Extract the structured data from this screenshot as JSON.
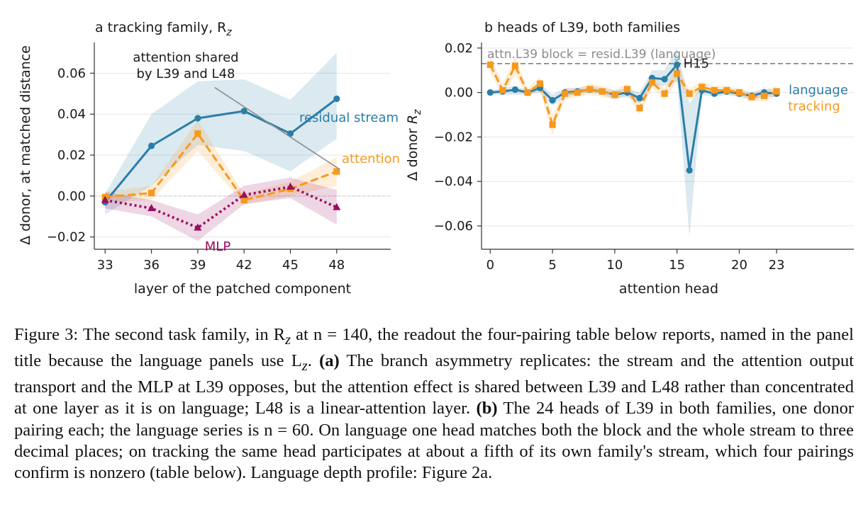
{
  "figure": {
    "panel_a_title": "a  tracking family, R",
    "panel_a_title_sub": "z",
    "panel_b_title": "b  heads of L39, both families",
    "caption": {
      "lead": "Figure 3: The second task family, in R",
      "lead_sub": "z",
      "p1": " at n = 140, the readout the four-pairing table below reports, named in the panel title because the language panels use L",
      "p1_sub": "z",
      "p2": ". ",
      "a_label": "(a)",
      "p3": " The branch asymmetry replicates: the stream and the attention output transport and the MLP at L39 opposes, but the attention effect is shared between L39 and L48 rather than concentrated at one layer as it is on language; L48 is a linear-attention layer. ",
      "b_label": "(b)",
      "p4": " The 24 heads of L39 in both families, one donor pairing each; the language series is n = 60. On language one head matches both the block and the whole stream to three decimal places; on tracking the same head participates at about a fifth of its own family's stream, which four pairings confirm is nonzero (table below). Language depth profile: Figure 2a."
    }
  },
  "chart_data": [
    {
      "type": "line",
      "panel": "a",
      "title": "a  tracking family, Rz",
      "xlabel": "layer of the patched component",
      "ylabel": "Δ donor, at matched distance",
      "xlim": [
        32.3,
        51.5
      ],
      "ylim": [
        -0.026,
        0.075
      ],
      "xticks": [
        33,
        36,
        39,
        42,
        45,
        48
      ],
      "yticks": [
        -0.02,
        0.0,
        0.02,
        0.04,
        0.06
      ],
      "ytick_labels": [
        "−0.02",
        "0.00",
        "0.02",
        "0.04",
        "0.06"
      ],
      "x": [
        33,
        36,
        39,
        42,
        45,
        48
      ],
      "grid": "horizontal",
      "zero_line": true,
      "series": [
        {
          "name": "residual stream",
          "color": "#2a7ea8",
          "style": "solid",
          "marker": "circle",
          "values": [
            -0.003,
            0.0245,
            0.038,
            0.0415,
            0.0305,
            0.0475
          ],
          "band_low": [
            -0.009,
            0.005,
            0.025,
            0.022,
            0.012,
            0.028
          ],
          "band_high": [
            0.001,
            0.04,
            0.056,
            0.057,
            0.047,
            0.07
          ]
        },
        {
          "name": "attention",
          "color": "#f7991e",
          "style": "dashed",
          "marker": "square",
          "values": [
            -0.0005,
            0.0015,
            0.0305,
            -0.002,
            0.0035,
            0.012
          ],
          "band_low": [
            -0.003,
            -0.002,
            0.022,
            -0.004,
            0.0,
            0.005
          ],
          "band_high": [
            0.002,
            0.005,
            0.037,
            0.001,
            0.007,
            0.019
          ]
        },
        {
          "name": "MLP",
          "color": "#9b0d5f",
          "style": "dotted",
          "marker": "triangle",
          "values": [
            -0.002,
            -0.006,
            -0.0155,
            0.0005,
            0.0045,
            -0.0055
          ],
          "band_low": [
            -0.006,
            -0.01,
            -0.022,
            -0.004,
            -0.001,
            -0.014
          ],
          "band_high": [
            0.002,
            -0.002,
            -0.009,
            0.005,
            0.009,
            0.003
          ]
        }
      ],
      "annotations": [
        {
          "text": "attention shared",
          "text2": "by L39 and L48",
          "arrow_to": [
            48.2,
            0.013
          ],
          "arrow_from": [
            40.1,
            0.053
          ]
        }
      ]
    },
    {
      "type": "line",
      "panel": "b",
      "title": "b  heads of L39, both families",
      "xlabel": "attention head",
      "ylabel": "Δ donor Rz",
      "xlim": [
        -0.7,
        29.2
      ],
      "ylim": [
        -0.0705,
        0.0225
      ],
      "xticks": [
        0,
        5,
        10,
        15,
        20,
        23
      ],
      "yticks": [
        -0.06,
        -0.04,
        -0.02,
        0.0,
        0.02
      ],
      "ytick_labels": [
        "−0.06",
        "−0.04",
        "−0.02",
        "0.00",
        "0.02"
      ],
      "x": [
        0,
        1,
        2,
        3,
        4,
        5,
        6,
        7,
        8,
        9,
        10,
        11,
        12,
        13,
        14,
        15,
        16,
        17,
        18,
        19,
        20,
        21,
        22,
        23
      ],
      "grid": "horizontal",
      "reference_line": {
        "y": 0.013,
        "label": "attn.L39 block  =  resid.L39 (language)"
      },
      "head_label": {
        "text": "H15",
        "head": 15
      },
      "series": [
        {
          "name": "language",
          "color": "#2a7ea8",
          "style": "solid",
          "marker": "circle",
          "values": [
            0.0,
            0.0005,
            0.0013,
            0.0,
            0.002,
            -0.0035,
            0.0,
            0.0005,
            0.0013,
            0.0005,
            -0.001,
            0.0,
            -0.0025,
            0.0065,
            0.006,
            0.0125,
            -0.035,
            0.001,
            -0.0005,
            0.0005,
            -0.0005,
            -0.0015,
            0.0,
            -0.0005
          ],
          "band_low": [
            -0.001,
            -0.001,
            -0.001,
            -0.001,
            0.0,
            -0.006,
            -0.002,
            -0.001,
            0.0,
            -0.001,
            -0.003,
            -0.002,
            -0.005,
            0.003,
            0.003,
            0.005,
            -0.065,
            -0.001,
            -0.002,
            -0.001,
            -0.002,
            -0.003,
            -0.002,
            -0.002
          ],
          "band_high": [
            0.001,
            0.002,
            0.003,
            0.001,
            0.004,
            -0.001,
            0.002,
            0.002,
            0.003,
            0.002,
            0.001,
            0.002,
            0.0,
            0.01,
            0.01,
            0.02,
            -0.005,
            0.003,
            0.001,
            0.002,
            0.001,
            0.0,
            0.002,
            0.001
          ]
        },
        {
          "name": "tracking",
          "color": "#f7991e",
          "style": "dashed",
          "marker": "square",
          "values": [
            0.0125,
            0.001,
            0.012,
            0.0,
            0.004,
            -0.0145,
            -0.0005,
            0.0,
            0.0015,
            0.0005,
            -0.001,
            0.0015,
            -0.007,
            0.0045,
            -0.0005,
            0.0085,
            -0.0005,
            0.0025,
            0.001,
            0.001,
            0.0,
            -0.002,
            -0.0015,
            0.0005
          ],
          "band_low": [
            0.009,
            -0.002,
            0.008,
            -0.002,
            0.001,
            -0.019,
            -0.003,
            -0.002,
            -0.001,
            -0.002,
            -0.003,
            -0.001,
            -0.01,
            0.002,
            -0.003,
            0.005,
            -0.003,
            0.0,
            -0.001,
            -0.001,
            -0.002,
            -0.004,
            -0.004,
            -0.002
          ],
          "band_high": [
            0.016,
            0.004,
            0.016,
            0.002,
            0.007,
            -0.01,
            0.002,
            0.002,
            0.004,
            0.003,
            0.001,
            0.004,
            -0.004,
            0.007,
            0.002,
            0.012,
            0.002,
            0.005,
            0.003,
            0.003,
            0.002,
            0.0,
            0.001,
            0.003
          ]
        }
      ]
    }
  ]
}
